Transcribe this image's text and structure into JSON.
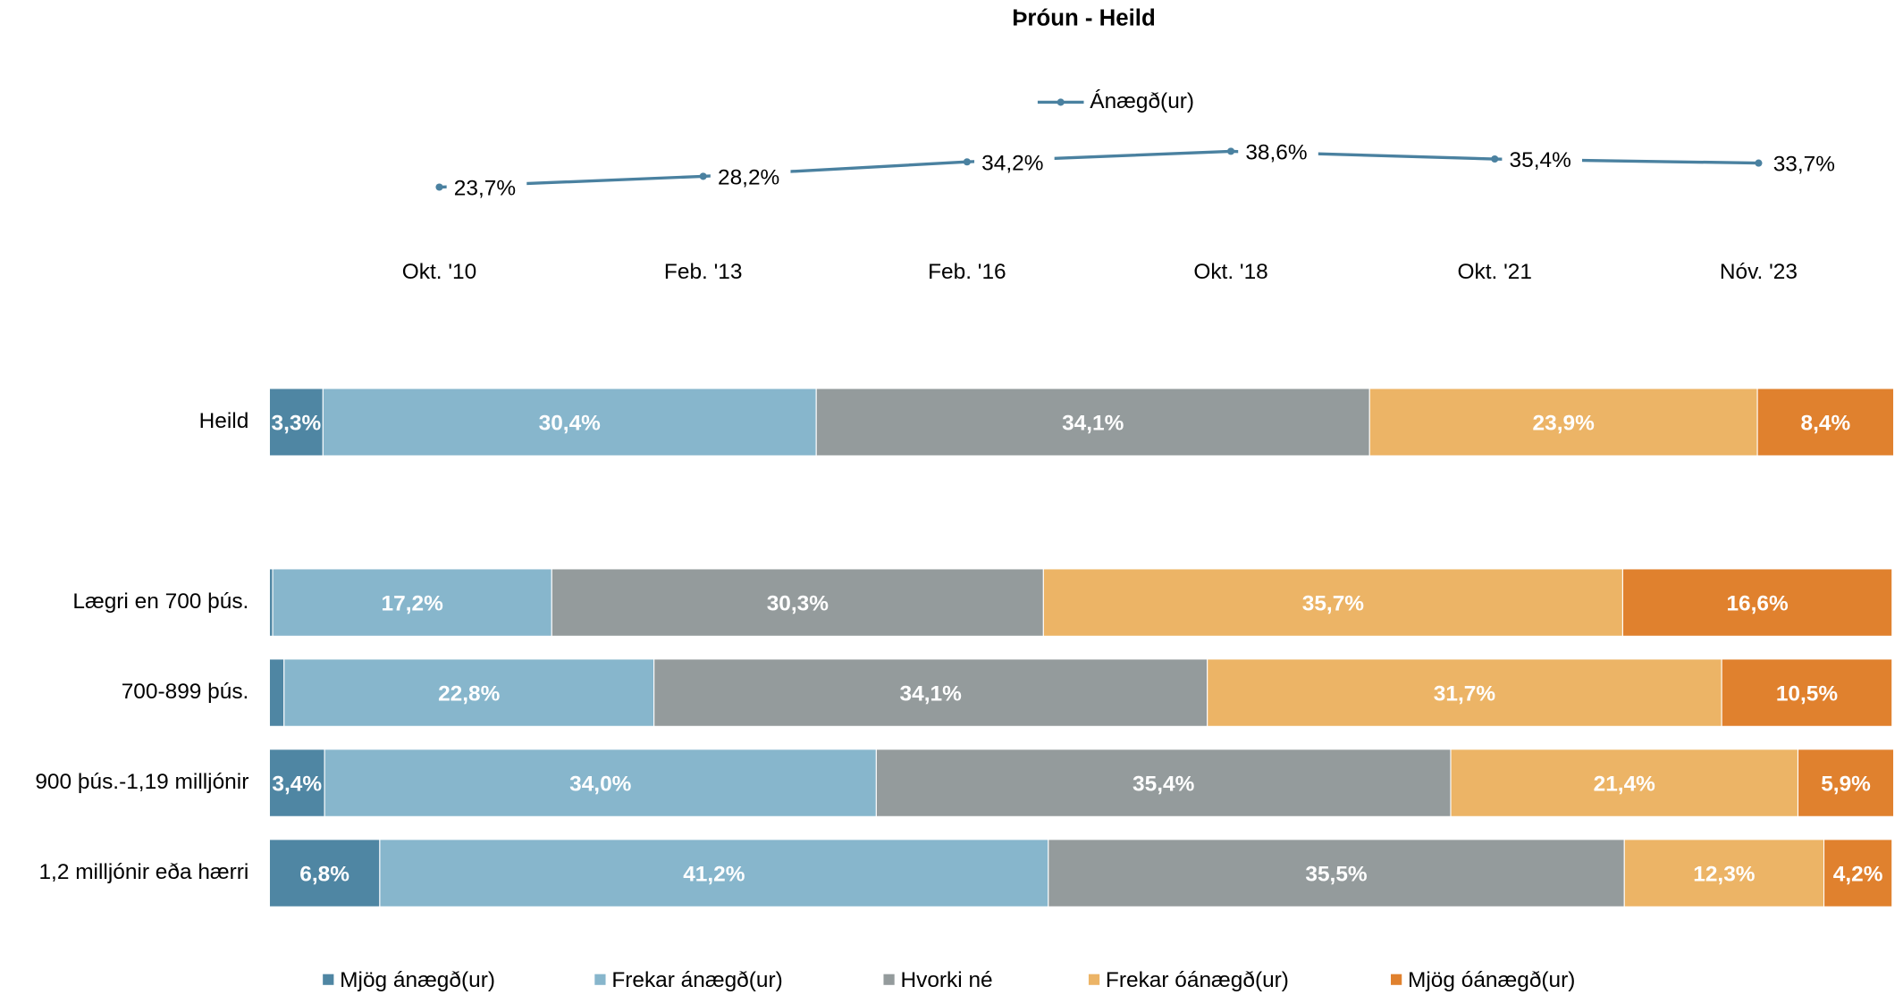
{
  "chart_data": [
    {
      "type": "line",
      "title": "Þróun - Heild",
      "categories": [
        "Okt. '10",
        "Feb. '13",
        "Feb. '16",
        "Okt. '18",
        "Okt. '21",
        "Nóv. '23"
      ],
      "series": [
        {
          "name": "Ánægð(ur)",
          "color": "#4a81a0",
          "values": [
            23.7,
            28.2,
            34.2,
            38.6,
            35.4,
            33.7
          ],
          "value_labels": [
            "23,7%",
            "28,2%",
            "34,2%",
            "38,6%",
            "35,4%",
            "33,7%"
          ]
        }
      ],
      "legend": "top"
    },
    {
      "type": "stacked-barh",
      "categories": [
        "Heild",
        "Lægri en 700 þús.",
        "700-899 þús.",
        "900 þús.-1,19 milljónir",
        "1,2 milljónir eða hærri"
      ],
      "series": [
        {
          "name": "Mjög ánægð(ur)",
          "color": "#4f86a3",
          "values": [
            3.3,
            0.2,
            0.9,
            3.4,
            6.8
          ],
          "value_labels": [
            "3,3%",
            null,
            null,
            "3,4%",
            "6,8%"
          ]
        },
        {
          "name": "Frekar ánægð(ur)",
          "color": "#87b6cc",
          "values": [
            30.4,
            17.2,
            22.8,
            34.0,
            41.2
          ],
          "value_labels": [
            "30,4%",
            "17,2%",
            "22,8%",
            "34,0%",
            "41,2%"
          ]
        },
        {
          "name": "Hvorki né",
          "color": "#949b9c",
          "values": [
            34.1,
            30.3,
            34.1,
            35.4,
            35.5
          ],
          "value_labels": [
            "34,1%",
            "30,3%",
            "34,1%",
            "35,4%",
            "35,5%"
          ]
        },
        {
          "name": "Frekar óánægð(ur)",
          "color": "#ecb466",
          "values": [
            23.9,
            35.7,
            31.7,
            21.4,
            12.3
          ],
          "value_labels": [
            "23,9%",
            "35,7%",
            "31,7%",
            "21,4%",
            "12,3%"
          ]
        },
        {
          "name": "Mjög óánægð(ur)",
          "color": "#e0812e",
          "values": [
            8.4,
            16.6,
            10.5,
            5.9,
            4.2
          ],
          "value_labels": [
            "8,4%",
            "16,6%",
            "10,5%",
            "5,9%",
            "4,2%"
          ]
        }
      ],
      "legend": "bottom"
    }
  ]
}
